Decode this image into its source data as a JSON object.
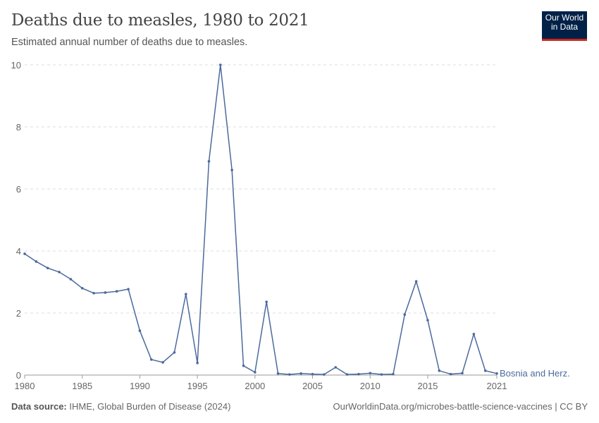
{
  "header": {
    "title": "Deaths due to measles, 1980 to 2021",
    "subtitle": "Estimated annual number of deaths due to measles.",
    "logo": "Our World in Data"
  },
  "footer": {
    "source_label": "Data source:",
    "source": "IHME, Global Burden of Disease (2024)",
    "url": "OurWorldinData.org/microbes-battle-science-vaccines | CC BY"
  },
  "chart_data": {
    "type": "line",
    "title": "Deaths due to measles, 1980 to 2021",
    "subtitle": "Estimated annual number of deaths due to measles.",
    "xlabel": "",
    "ylabel": "",
    "xlim": [
      1980,
      2021
    ],
    "ylim": [
      0,
      10
    ],
    "x_ticks": [
      "1980",
      "1985",
      "1990",
      "1995",
      "2000",
      "2005",
      "2010",
      "2015",
      "2021"
    ],
    "y_ticks": [
      "0",
      "2",
      "4",
      "6",
      "8",
      "10"
    ],
    "grid": "horizontal dashed",
    "legend": "right end label",
    "series": [
      {
        "name": "Bosnia and Herz.",
        "color": "#4c6a9c",
        "x": [
          1980,
          1981,
          1982,
          1983,
          1984,
          1985,
          1986,
          1987,
          1988,
          1989,
          1990,
          1991,
          1992,
          1993,
          1994,
          1995,
          1996,
          1997,
          1998,
          1999,
          2000,
          2001,
          2002,
          2003,
          2004,
          2005,
          2006,
          2007,
          2008,
          2009,
          2010,
          2011,
          2012,
          2013,
          2014,
          2015,
          2016,
          2017,
          2018,
          2019,
          2020,
          2021
        ],
        "values": [
          3.91,
          3.66,
          3.45,
          3.32,
          3.09,
          2.8,
          2.64,
          2.66,
          2.7,
          2.77,
          1.43,
          0.5,
          0.41,
          0.73,
          2.61,
          0.39,
          6.89,
          10.0,
          6.61,
          0.3,
          0.09,
          2.36,
          0.05,
          0.02,
          0.05,
          0.03,
          0.02,
          0.25,
          0.02,
          0.03,
          0.06,
          0.02,
          0.03,
          1.95,
          3.02,
          1.77,
          0.14,
          0.03,
          0.06,
          1.32,
          0.14,
          0.05
        ]
      }
    ]
  }
}
